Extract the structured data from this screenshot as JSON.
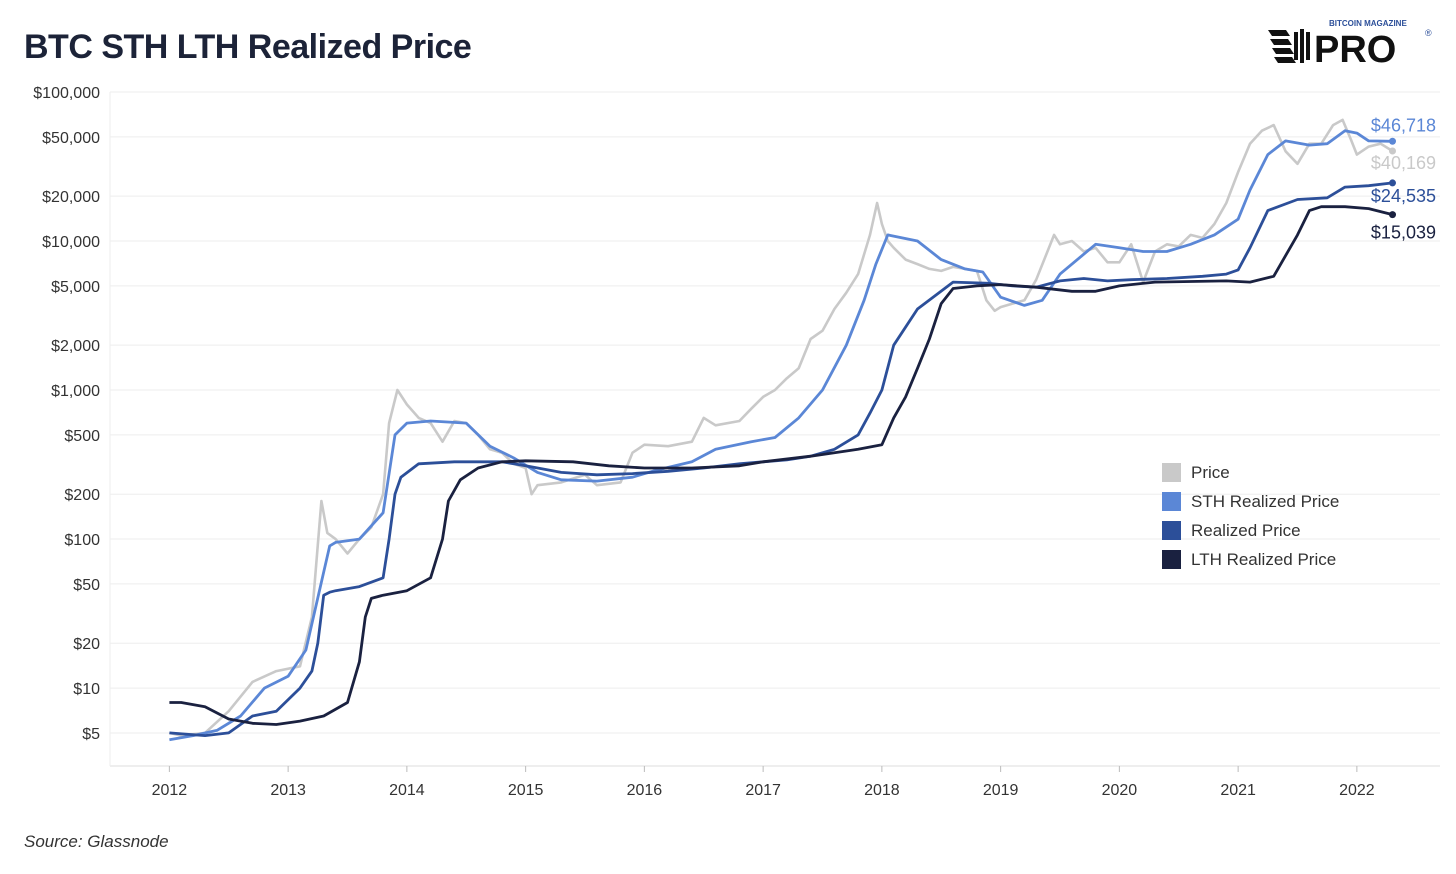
{
  "title": "BTC STH LTH Realized Price",
  "source": "Source: Glassnode",
  "logo": {
    "top_text": "BITCOIN MAGAZINE",
    "main_text": "PRO",
    "registered_mark": "®"
  },
  "colors": {
    "price": "#c9c9c9",
    "sth": "#5b87d6",
    "realized": "#2c4f99",
    "lth": "#1a2140",
    "grid": "#eeeeee",
    "title": "#1c2338"
  },
  "legend": {
    "items": [
      {
        "label": "Price",
        "color": "#c9c9c9"
      },
      {
        "label": "STH Realized Price",
        "color": "#5b87d6"
      },
      {
        "label": "Realized Price",
        "color": "#2c4f99"
      },
      {
        "label": "LTH Realized Price",
        "color": "#1a2140"
      }
    ]
  },
  "chart_data": {
    "type": "line",
    "title": "BTC STH LTH Realized Price",
    "xlabel": "",
    "ylabel": "",
    "y_scale": "log",
    "ylim": [
      3,
      100000
    ],
    "xlim": [
      2011.5,
      2022.7
    ],
    "y_ticks": [
      5,
      10,
      20,
      50,
      100,
      200,
      500,
      1000,
      2000,
      5000,
      10000,
      20000,
      50000,
      100000
    ],
    "y_tick_labels": [
      "$5",
      "$10",
      "$20",
      "$50",
      "$100",
      "$200",
      "$500",
      "$1,000",
      "$2,000",
      "$5,000",
      "$10,000",
      "$20,000",
      "$50,000",
      "$100,000"
    ],
    "x_ticks": [
      2012,
      2013,
      2014,
      2015,
      2016,
      2017,
      2018,
      2019,
      2020,
      2021,
      2022
    ],
    "x_tick_labels": [
      "2012",
      "2013",
      "2014",
      "2015",
      "2016",
      "2017",
      "2018",
      "2019",
      "2020",
      "2021",
      "2022"
    ],
    "grid": true,
    "legend_position": "right",
    "series": [
      {
        "name": "Price",
        "color": "#c9c9c9",
        "end_label": "$40,169",
        "x": [
          2012.0,
          2012.1,
          2012.3,
          2012.5,
          2012.7,
          2012.9,
          2013.1,
          2013.2,
          2013.28,
          2013.33,
          2013.4,
          2013.5,
          2013.6,
          2013.7,
          2013.8,
          2013.85,
          2013.92,
          2014.0,
          2014.1,
          2014.2,
          2014.3,
          2014.4,
          2014.5,
          2014.6,
          2014.7,
          2014.8,
          2014.9,
          2015.0,
          2015.05,
          2015.1,
          2015.3,
          2015.5,
          2015.6,
          2015.8,
          2015.9,
          2016.0,
          2016.2,
          2016.4,
          2016.5,
          2016.6,
          2016.8,
          2016.9,
          2017.0,
          2017.1,
          2017.2,
          2017.3,
          2017.4,
          2017.5,
          2017.6,
          2017.7,
          2017.8,
          2017.9,
          2017.96,
          2018.0,
          2018.05,
          2018.1,
          2018.2,
          2018.3,
          2018.4,
          2018.5,
          2018.6,
          2018.7,
          2018.8,
          2018.88,
          2018.95,
          2019.0,
          2019.1,
          2019.2,
          2019.3,
          2019.45,
          2019.5,
          2019.6,
          2019.7,
          2019.8,
          2019.9,
          2020.0,
          2020.1,
          2020.2,
          2020.3,
          2020.4,
          2020.5,
          2020.6,
          2020.7,
          2020.8,
          2020.9,
          2021.0,
          2021.1,
          2021.2,
          2021.3,
          2021.4,
          2021.5,
          2021.6,
          2021.7,
          2021.8,
          2021.88,
          2021.95,
          2022.0,
          2022.1,
          2022.2,
          2022.3
        ],
        "y": [
          5,
          4.8,
          5,
          7,
          11,
          13,
          14,
          30,
          180,
          110,
          100,
          80,
          100,
          120,
          200,
          600,
          1000,
          800,
          650,
          600,
          450,
          620,
          600,
          500,
          400,
          380,
          320,
          300,
          200,
          230,
          240,
          270,
          230,
          240,
          380,
          430,
          420,
          450,
          650,
          580,
          620,
          750,
          900,
          1000,
          1200,
          1400,
          2200,
          2500,
          3500,
          4500,
          6000,
          11000,
          18000,
          13000,
          10000,
          9000,
          7500,
          7000,
          6500,
          6300,
          6700,
          6500,
          6300,
          4000,
          3400,
          3600,
          3800,
          4000,
          5500,
          11000,
          9500,
          10000,
          8500,
          9000,
          7200,
          7200,
          9500,
          5300,
          8500,
          9500,
          9200,
          11000,
          10500,
          13000,
          18000,
          29000,
          45000,
          55000,
          60000,
          40000,
          33000,
          45000,
          45000,
          60000,
          65000,
          48000,
          38000,
          43000,
          45000,
          40169
        ]
      },
      {
        "name": "STH Realized Price",
        "color": "#5b87d6",
        "end_label": "$46,718",
        "x": [
          2012.0,
          2012.2,
          2012.4,
          2012.6,
          2012.8,
          2013.0,
          2013.15,
          2013.3,
          2013.35,
          2013.4,
          2013.6,
          2013.8,
          2013.9,
          2014.0,
          2014.2,
          2014.5,
          2014.7,
          2014.9,
          2015.1,
          2015.3,
          2015.6,
          2015.9,
          2016.1,
          2016.4,
          2016.6,
          2016.9,
          2017.1,
          2017.3,
          2017.5,
          2017.7,
          2017.85,
          2017.95,
          2018.05,
          2018.3,
          2018.5,
          2018.7,
          2018.85,
          2019.0,
          2019.2,
          2019.35,
          2019.5,
          2019.8,
          2020.0,
          2020.2,
          2020.4,
          2020.6,
          2020.8,
          2021.0,
          2021.1,
          2021.25,
          2021.4,
          2021.6,
          2021.75,
          2021.9,
          2022.0,
          2022.1,
          2022.3
        ],
        "y": [
          4.5,
          4.8,
          5.2,
          6.5,
          10,
          12,
          18,
          60,
          90,
          95,
          100,
          150,
          500,
          600,
          620,
          600,
          420,
          350,
          280,
          250,
          245,
          260,
          290,
          330,
          400,
          450,
          480,
          650,
          1000,
          2000,
          4000,
          7000,
          11000,
          10000,
          7500,
          6500,
          6200,
          4200,
          3700,
          4000,
          6000,
          9500,
          9000,
          8500,
          8500,
          9500,
          11000,
          14000,
          22000,
          38000,
          47000,
          44000,
          45000,
          55000,
          53000,
          47000,
          46718
        ]
      },
      {
        "name": "Realized Price",
        "color": "#2c4f99",
        "end_label": "$24,535",
        "x": [
          2012.0,
          2012.3,
          2012.5,
          2012.7,
          2012.9,
          2013.1,
          2013.2,
          2013.25,
          2013.3,
          2013.35,
          2013.4,
          2013.6,
          2013.8,
          2013.85,
          2013.9,
          2013.95,
          2014.1,
          2014.4,
          2014.6,
          2014.8,
          2015.0,
          2015.3,
          2015.6,
          2015.9,
          2016.2,
          2016.5,
          2016.8,
          2017.0,
          2017.2,
          2017.4,
          2017.6,
          2017.8,
          2017.9,
          2018.0,
          2018.1,
          2018.3,
          2018.6,
          2018.9,
          2019.1,
          2019.3,
          2019.5,
          2019.7,
          2019.9,
          2020.1,
          2020.4,
          2020.7,
          2020.9,
          2021.0,
          2021.1,
          2021.25,
          2021.5,
          2021.75,
          2021.9,
          2022.1,
          2022.3
        ],
        "y": [
          5,
          4.8,
          5,
          6.5,
          7,
          10,
          13,
          20,
          42,
          44,
          45,
          48,
          55,
          100,
          200,
          260,
          320,
          330,
          330,
          330,
          310,
          280,
          270,
          275,
          285,
          300,
          320,
          330,
          340,
          360,
          400,
          500,
          700,
          1000,
          2000,
          3500,
          5300,
          5200,
          5000,
          4900,
          5400,
          5600,
          5400,
          5500,
          5600,
          5800,
          6000,
          6400,
          9000,
          16000,
          19000,
          19500,
          23000,
          23500,
          24535
        ]
      },
      {
        "name": "LTH Realized Price",
        "color": "#1a2140",
        "end_label": "$15,039",
        "x": [
          2012.0,
          2012.1,
          2012.3,
          2012.5,
          2012.7,
          2012.9,
          2013.1,
          2013.3,
          2013.5,
          2013.6,
          2013.65,
          2013.7,
          2013.8,
          2014.0,
          2014.2,
          2014.3,
          2014.35,
          2014.45,
          2014.6,
          2014.8,
          2015.0,
          2015.4,
          2015.7,
          2016.0,
          2016.4,
          2016.8,
          2017.0,
          2017.4,
          2017.7,
          2017.8,
          2018.0,
          2018.1,
          2018.2,
          2018.3,
          2018.4,
          2018.5,
          2018.6,
          2018.8,
          2019.0,
          2019.3,
          2019.6,
          2019.8,
          2020.0,
          2020.3,
          2020.6,
          2020.9,
          2021.1,
          2021.3,
          2021.5,
          2021.6,
          2021.7,
          2021.9,
          2022.1,
          2022.3
        ],
        "y": [
          8,
          8,
          7.5,
          6.2,
          5.8,
          5.7,
          6,
          6.5,
          8,
          15,
          30,
          40,
          42,
          45,
          55,
          100,
          180,
          250,
          300,
          330,
          335,
          330,
          310,
          300,
          300,
          310,
          330,
          360,
          390,
          400,
          430,
          650,
          900,
          1400,
          2200,
          3800,
          4800,
          5000,
          5100,
          4900,
          4600,
          4600,
          5000,
          5300,
          5350,
          5400,
          5300,
          5800,
          11000,
          16000,
          17000,
          17000,
          16500,
          15039
        ]
      }
    ]
  }
}
